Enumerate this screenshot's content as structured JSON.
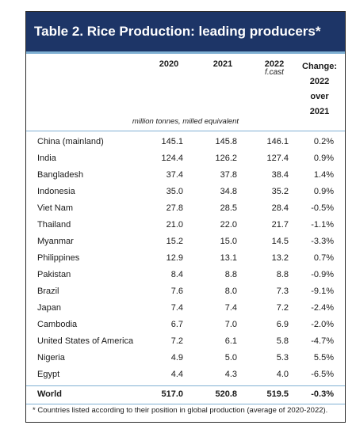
{
  "title": "Table 2. Rice Production: leading producers*",
  "headers": {
    "y2020": "2020",
    "y2021": "2021",
    "y2022": "2022",
    "y2022_sub": "f.cast",
    "change": [
      "Change:",
      "2022",
      "over",
      "2021"
    ]
  },
  "units": "million tonnes, milled equivalent",
  "rows": [
    {
      "country": "China (mainland)",
      "v2020": "145.1",
      "v2021": "145.8",
      "v2022": "146.1",
      "change": "0.2%"
    },
    {
      "country": "India",
      "v2020": "124.4",
      "v2021": "126.2",
      "v2022": "127.4",
      "change": "0.9%"
    },
    {
      "country": "Bangladesh",
      "v2020": "37.4",
      "v2021": "37.8",
      "v2022": "38.4",
      "change": "1.4%"
    },
    {
      "country": "Indonesia",
      "v2020": "35.0",
      "v2021": "34.8",
      "v2022": "35.2",
      "change": "0.9%"
    },
    {
      "country": "Viet Nam",
      "v2020": "27.8",
      "v2021": "28.5",
      "v2022": "28.4",
      "change": "-0.5%"
    },
    {
      "country": "Thailand",
      "v2020": "21.0",
      "v2021": "22.0",
      "v2022": "21.7",
      "change": "-1.1%"
    },
    {
      "country": "Myanmar",
      "v2020": "15.2",
      "v2021": "15.0",
      "v2022": "14.5",
      "change": "-3.3%"
    },
    {
      "country": "Philippines",
      "v2020": "12.9",
      "v2021": "13.1",
      "v2022": "13.2",
      "change": "0.7%"
    },
    {
      "country": "Pakistan",
      "v2020": "8.4",
      "v2021": "8.8",
      "v2022": "8.8",
      "change": "-0.9%"
    },
    {
      "country": "Brazil",
      "v2020": "7.6",
      "v2021": "8.0",
      "v2022": "7.3",
      "change": "-9.1%"
    },
    {
      "country": "Japan",
      "v2020": "7.4",
      "v2021": "7.4",
      "v2022": "7.2",
      "change": "-2.4%"
    },
    {
      "country": "Cambodia",
      "v2020": "6.7",
      "v2021": "7.0",
      "v2022": "6.9",
      "change": "-2.0%"
    },
    {
      "country": "United States of America",
      "v2020": "7.2",
      "v2021": "6.1",
      "v2022": "5.8",
      "change": "-4.7%"
    },
    {
      "country": "Nigeria",
      "v2020": "4.9",
      "v2021": "5.0",
      "v2022": "5.3",
      "change": "5.5%"
    },
    {
      "country": "Egypt",
      "v2020": "4.4",
      "v2021": "4.3",
      "v2022": "4.0",
      "change": "-6.5%"
    }
  ],
  "total": {
    "country": "World",
    "v2020": "517.0",
    "v2021": "520.8",
    "v2022": "519.5",
    "change": "-0.3%"
  },
  "footnote": "* Countries listed according to their position in global production (average of 2020-2022).",
  "colors": {
    "title_bg": "#1d3567",
    "rule": "#7fb0d3"
  }
}
